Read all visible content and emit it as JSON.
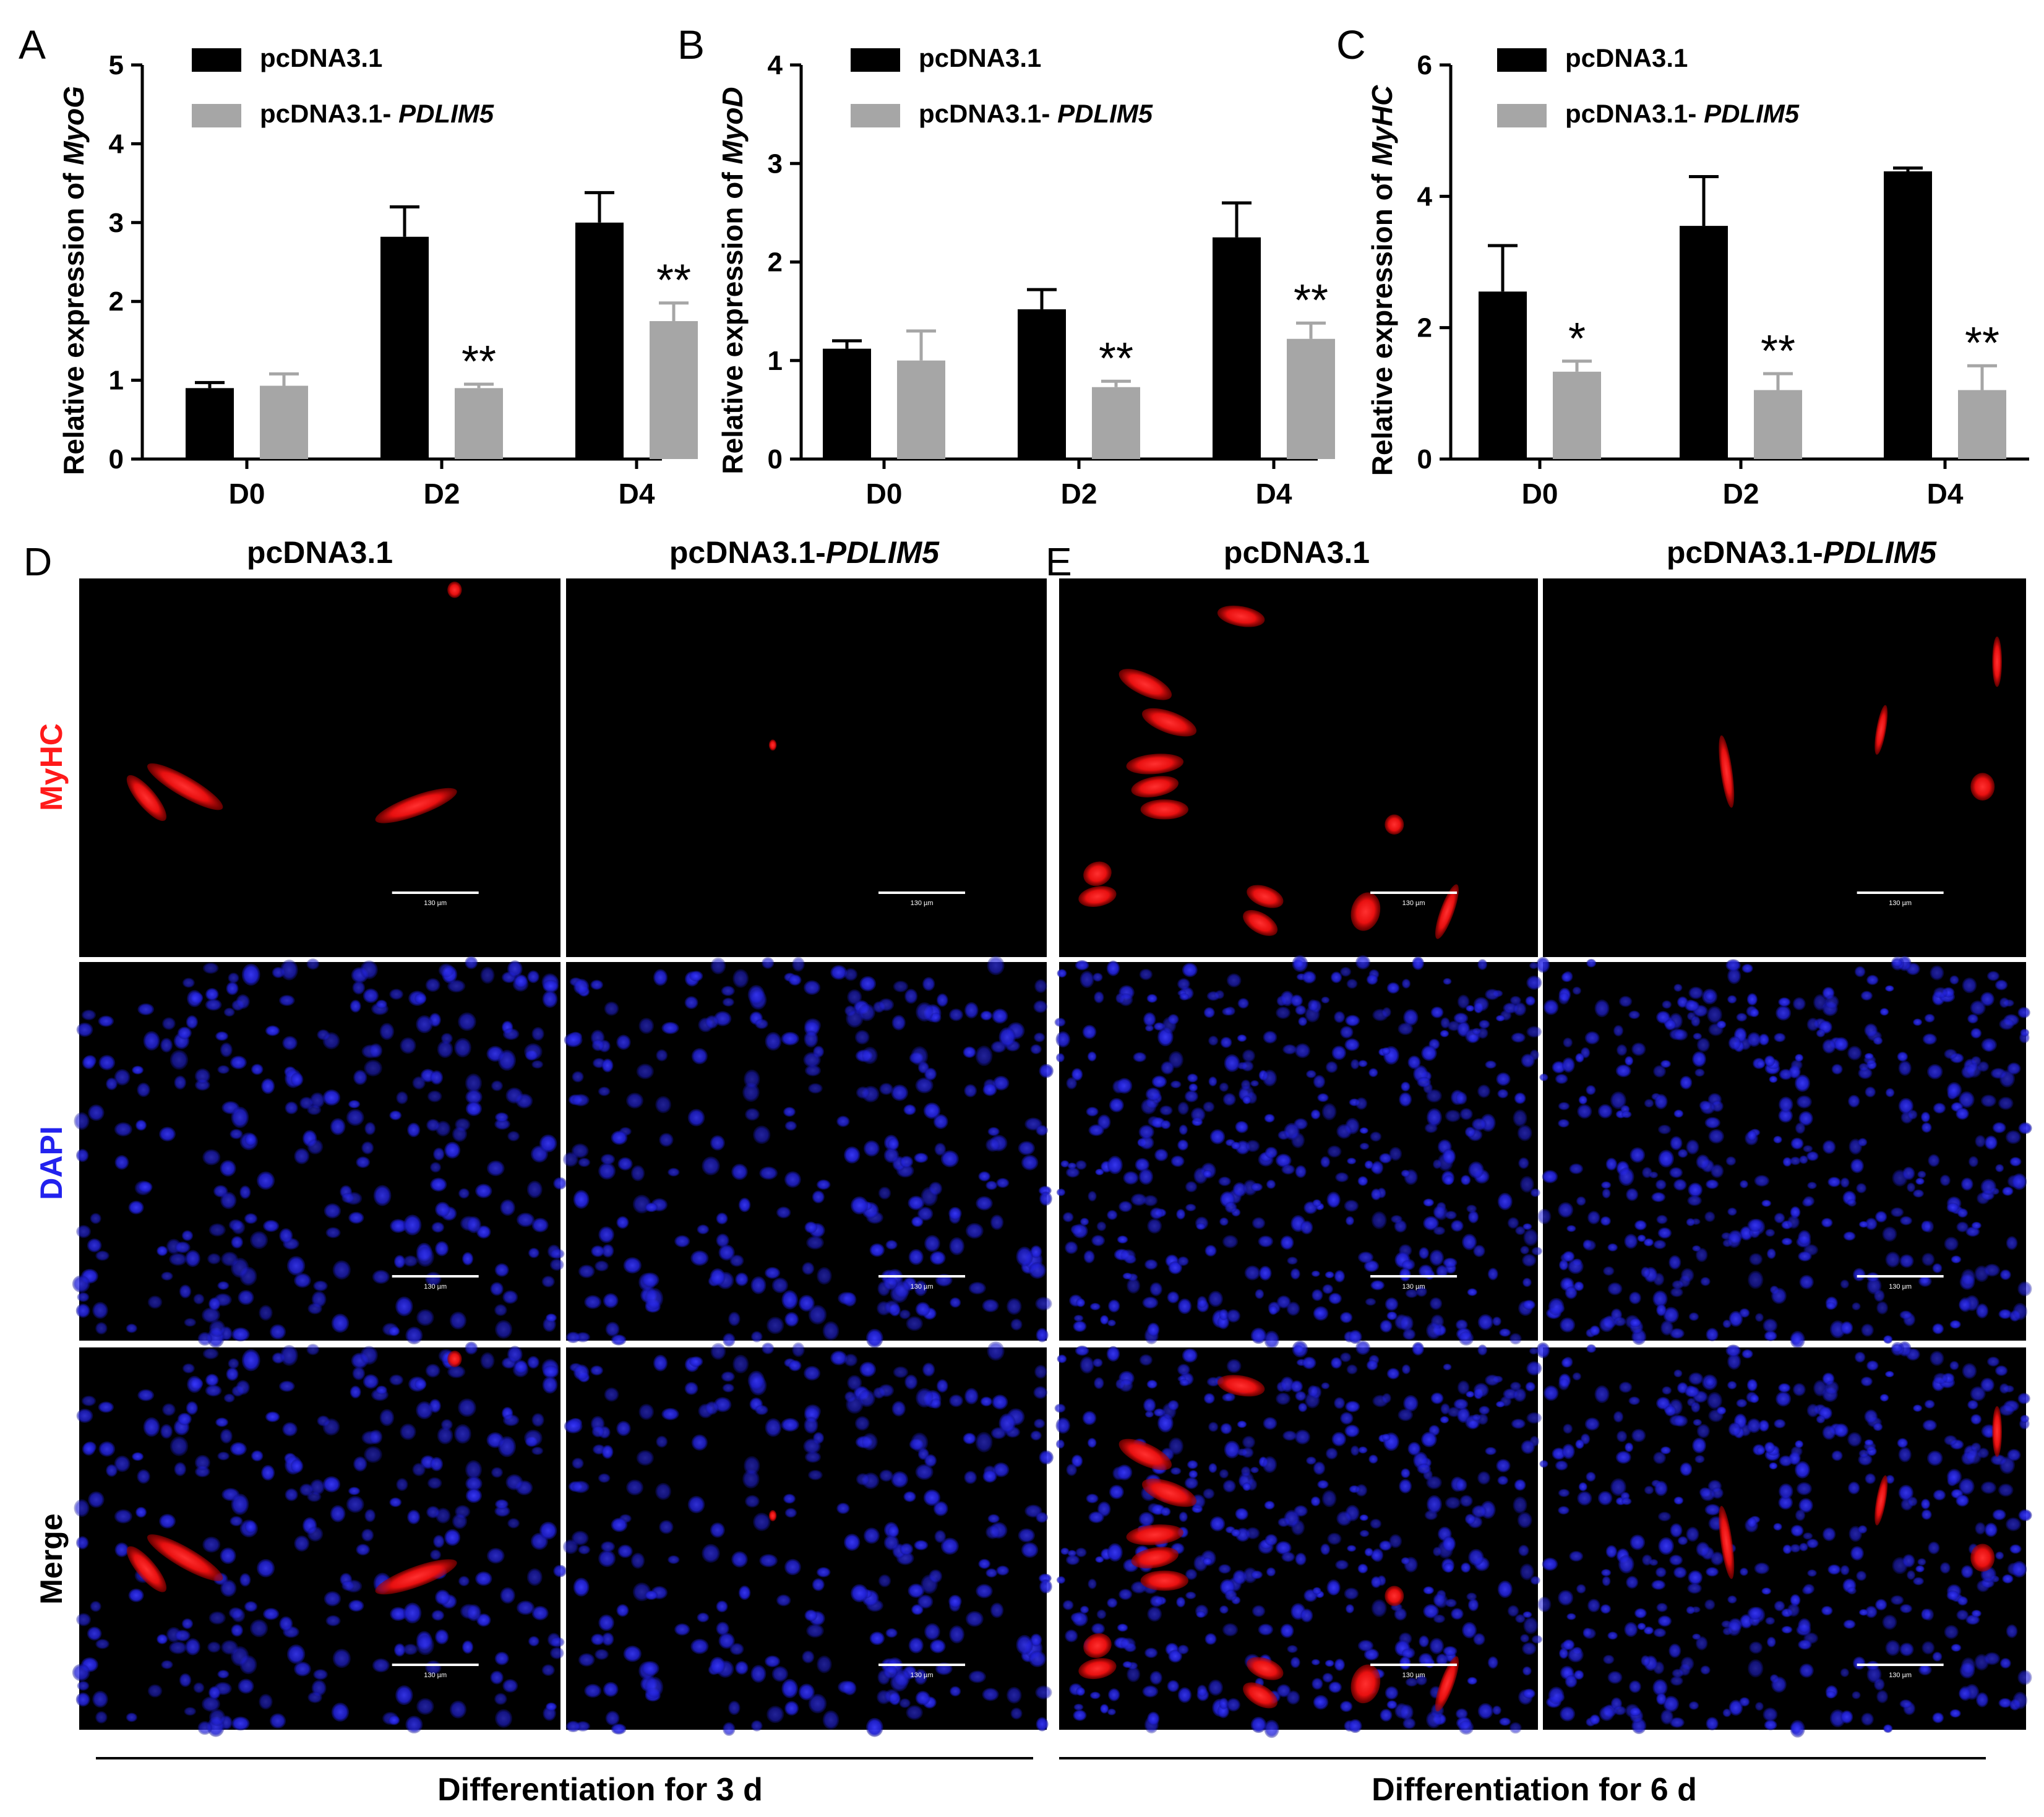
{
  "legend": {
    "control": "pcDNA3.1",
    "overexpression_prefix": "pcDNA3.1-",
    "overexpression_gene": "PDLIM5"
  },
  "colors": {
    "control": "#000000",
    "overexpression": "#a6a6a6",
    "myhc_stain": "#ff1a1a",
    "dapi_stain": "#2222ee",
    "panel_background": "#000000"
  },
  "chart_data": [
    {
      "type": "bar",
      "panel_label": "A",
      "ylabel_prefix": "Relative expression of",
      "ylabel_gene": "MyoG",
      "ylim": [
        0,
        5
      ],
      "yticks": [
        "0",
        "1",
        "2",
        "3",
        "4",
        "5"
      ],
      "categories": [
        "D0",
        "D2",
        "D4"
      ],
      "series": [
        {
          "name": "pcDNA3.1",
          "values": [
            0.9,
            2.82,
            3.0
          ],
          "errors": [
            0.07,
            0.38,
            0.38
          ]
        },
        {
          "name": "pcDNA3.1- PDLIM5",
          "values": [
            0.93,
            0.9,
            1.75
          ],
          "errors": [
            0.15,
            0.05,
            0.23
          ]
        }
      ],
      "significance": [
        "",
        "**",
        "**"
      ]
    },
    {
      "type": "bar",
      "panel_label": "B",
      "ylabel_prefix": "Relative expression of",
      "ylabel_gene": "MyoD",
      "ylim": [
        0,
        4
      ],
      "yticks": [
        "0",
        "1",
        "2",
        "3",
        "4"
      ],
      "categories": [
        "D0",
        "D2",
        "D4"
      ],
      "series": [
        {
          "name": "pcDNA3.1",
          "values": [
            1.12,
            1.52,
            2.25
          ],
          "errors": [
            0.08,
            0.2,
            0.35
          ]
        },
        {
          "name": "pcDNA3.1- PDLIM5",
          "values": [
            1.0,
            0.73,
            1.22
          ],
          "errors": [
            0.3,
            0.06,
            0.16
          ]
        }
      ],
      "significance": [
        "",
        "**",
        "**"
      ]
    },
    {
      "type": "bar",
      "panel_label": "C",
      "ylabel_prefix": "Relative expression of",
      "ylabel_gene": "MyHC",
      "ylim": [
        0,
        6
      ],
      "yticks": [
        "0",
        "2",
        "4",
        "6"
      ],
      "categories": [
        "D0",
        "D2",
        "D4"
      ],
      "series": [
        {
          "name": "pcDNA3.1",
          "values": [
            2.55,
            3.55,
            4.38
          ],
          "errors": [
            0.7,
            0.75,
            0.05
          ]
        },
        {
          "name": "pcDNA3.1- PDLIM5",
          "values": [
            1.33,
            1.05,
            1.05
          ],
          "errors": [
            0.16,
            0.25,
            0.37
          ]
        }
      ],
      "significance": [
        "*",
        "**",
        "**"
      ]
    }
  ],
  "micrographs": {
    "groups": [
      {
        "panel_label": "D",
        "caption": "Differentiation for 3 d"
      },
      {
        "panel_label": "E",
        "caption": "Differentiation for 6 d"
      }
    ],
    "columns": [
      {
        "text": "pcDNA3.1",
        "gene": ""
      },
      {
        "text": "pcDNA3.1-",
        "gene": "PDLIM5"
      }
    ],
    "rows": [
      "MyHC",
      "DAPI",
      "Merge"
    ],
    "scale_bar": "130 µm"
  }
}
